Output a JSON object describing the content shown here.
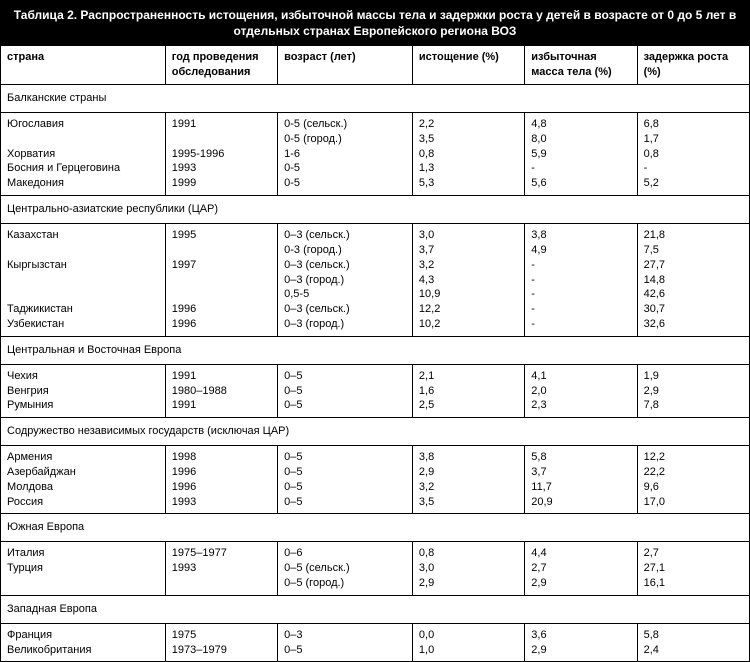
{
  "title": "Таблица 2. Распространенность истощения, избыточной массы тела и задержки роста у детей в возрасте от 0 до 5 лет в отдельных странах Европейского региона ВОЗ",
  "columns": [
    "страна",
    "год проведения обследования",
    "возраст (лет)",
    "истощение (%)",
    "избыточная масса тела (%)",
    "задержка роста (%)"
  ],
  "sections": [
    {
      "name": "Балканские страны",
      "countries": [
        "Югославия",
        "",
        "Хорватия",
        "Босния и Герцеговина",
        "Македония"
      ],
      "years": [
        "1991",
        "",
        "1995-1996",
        "1993",
        "1999"
      ],
      "ages": [
        "0-5 (сельск.)",
        "0-5 (город.)",
        "1-6",
        "0-5",
        "0-5"
      ],
      "wasting": [
        "2,2",
        "3,5",
        "0,8",
        "1,3",
        "5,3"
      ],
      "over": [
        "4,8",
        "8,0",
        "5,9",
        "-",
        "5,6"
      ],
      "stunt": [
        "6,8",
        "1,7",
        "0,8",
        "-",
        "5,2"
      ]
    },
    {
      "name": "Центрально-азиатские республики (ЦАР)",
      "countries": [
        "Казахстан",
        "",
        "Кыргызстан",
        "",
        "",
        "Таджикистан",
        "Узбекистан"
      ],
      "years": [
        "1995",
        "",
        "1997",
        "",
        "",
        "1996",
        "1996"
      ],
      "ages": [
        "0–3 (сельск.)",
        "0-3 (город.)",
        "0–3 (сельск.)",
        "0–3 (город.)",
        "0,5-5",
        "0–3 (сельск.)",
        "0–3 (город.)"
      ],
      "wasting": [
        "3,0",
        "3,7",
        "3,2",
        "4,3",
        "10,9",
        "12,2",
        "10,2"
      ],
      "over": [
        "3,8",
        "4,9",
        "-",
        "-",
        "-",
        "-",
        "-"
      ],
      "stunt": [
        "21,8",
        "7,5",
        "27,7",
        "14,8",
        "42,6",
        "30,7",
        "32,6"
      ]
    },
    {
      "name": "Центральная и Восточная Европа",
      "countries": [
        "Чехия",
        "Венгрия",
        "Румыния"
      ],
      "years": [
        "1991",
        "1980–1988",
        "1991"
      ],
      "ages": [
        "0–5",
        "0–5",
        "0–5"
      ],
      "wasting": [
        "2,1",
        "1,6",
        "2,5"
      ],
      "over": [
        "4,1",
        "2,0",
        "2,3"
      ],
      "stunt": [
        "1,9",
        "2,9",
        "7,8"
      ]
    },
    {
      "name": "Содружество независимых государств (исключая ЦАР)",
      "countries": [
        "Армения",
        "Азербайджан",
        "Молдова",
        "Россия"
      ],
      "years": [
        "1998",
        "1996",
        "1996",
        "1993"
      ],
      "ages": [
        "0–5",
        "0–5",
        "0–5",
        "0–5"
      ],
      "wasting": [
        "3,8",
        "2,9",
        "3,2",
        "3,5"
      ],
      "over": [
        "5,8",
        "3,7",
        "11,7",
        "20,9"
      ],
      "stunt": [
        "12,2",
        "22,2",
        "9,6",
        "17,0"
      ]
    },
    {
      "name": "Южная Европа",
      "countries": [
        "Италия",
        "Турция",
        ""
      ],
      "years": [
        "1975–1977",
        "1993",
        ""
      ],
      "ages": [
        "0–6",
        "0–5 (сельск.)",
        "0–5 (город.)"
      ],
      "wasting": [
        "0,8",
        "3,0",
        "2,9"
      ],
      "over": [
        "4,4",
        "2,7",
        "2,9"
      ],
      "stunt": [
        "2,7",
        "27,1",
        "16,1"
      ]
    },
    {
      "name": "Западная Европа",
      "countries": [
        "Франция",
        "Великобритания"
      ],
      "years": [
        "1975",
        "1973–1979"
      ],
      "ages": [
        "0–3",
        "0–5"
      ],
      "wasting": [
        "0,0",
        "1,0"
      ],
      "over": [
        "3,6",
        "2,9"
      ],
      "stunt": [
        "5,8",
        "2,4"
      ]
    }
  ]
}
